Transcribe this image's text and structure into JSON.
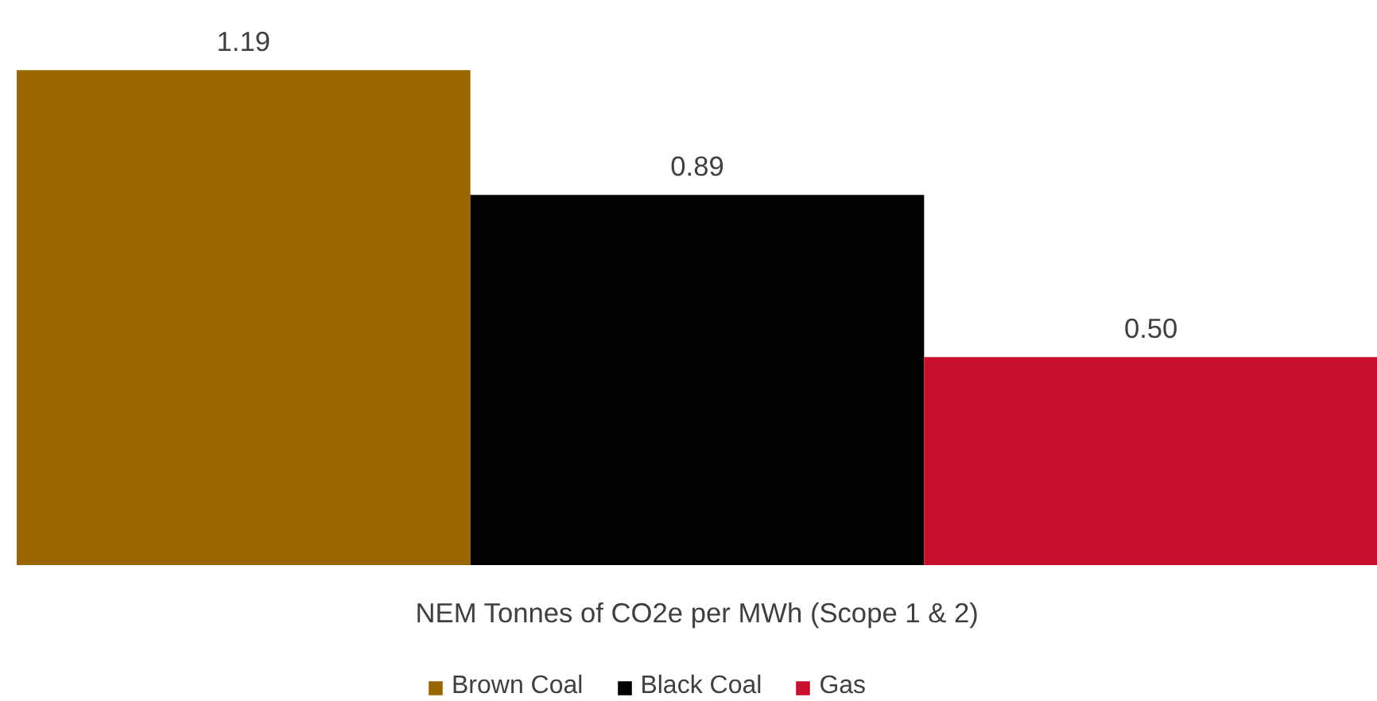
{
  "chart_data": {
    "type": "bar",
    "xlabel": "NEM Tonnes of CO2e per MWh (Scope 1 & 2)",
    "categories": [
      null
    ],
    "series": [
      {
        "name": "Brown Coal",
        "color": "#996600",
        "values": [
          1.19
        ],
        "value_labels": [
          "1.19"
        ]
      },
      {
        "name": "Black Coal",
        "color": "#000000",
        "values": [
          0.89
        ],
        "value_labels": [
          "0.89"
        ]
      },
      {
        "name": "Gas",
        "color": "#c8102e",
        "values": [
          0.5
        ],
        "value_labels": [
          "0.50"
        ]
      }
    ],
    "data_labels": true,
    "legend": "bottom",
    "grid": false
  }
}
